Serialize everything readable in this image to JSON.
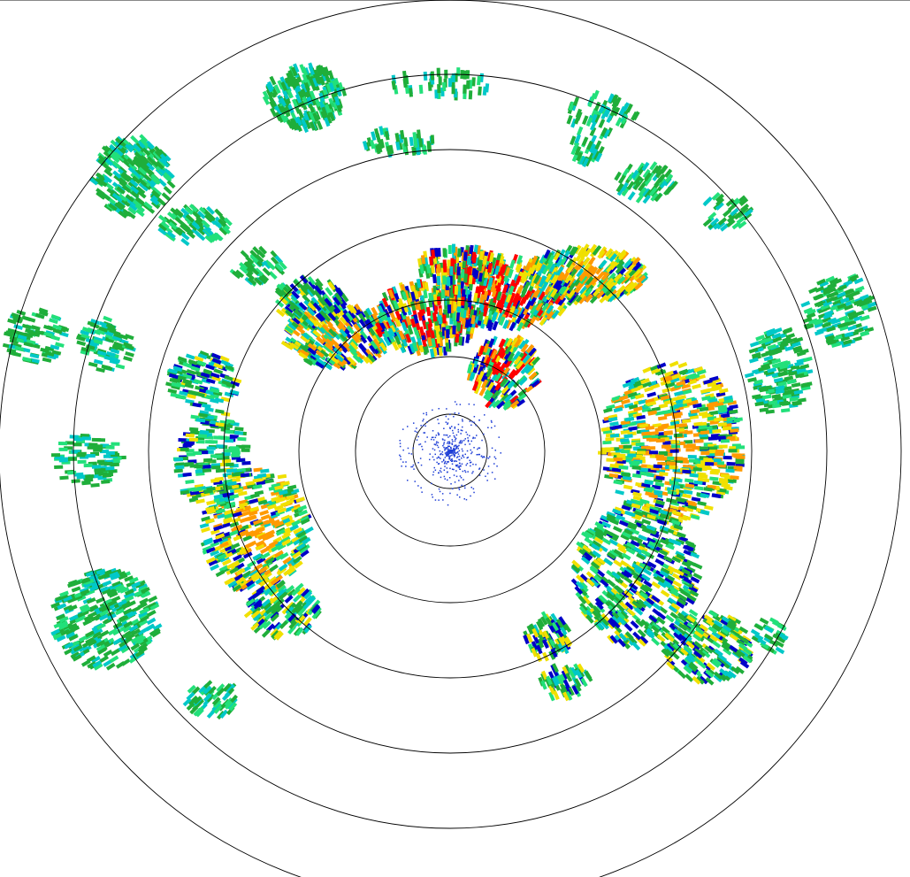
{
  "radar": {
    "palette": {
      "light_blue": "#1f3fd6",
      "dark_blue": "#0000c8",
      "cyan": "#00c8c8",
      "light_green": "#22e07a",
      "green": "#1fae3a",
      "yellow": "#f0e000",
      "orange": "#ff9a00",
      "red": "#ff0000",
      "ring": "#000000"
    },
    "range_ring_count": 7
  }
}
